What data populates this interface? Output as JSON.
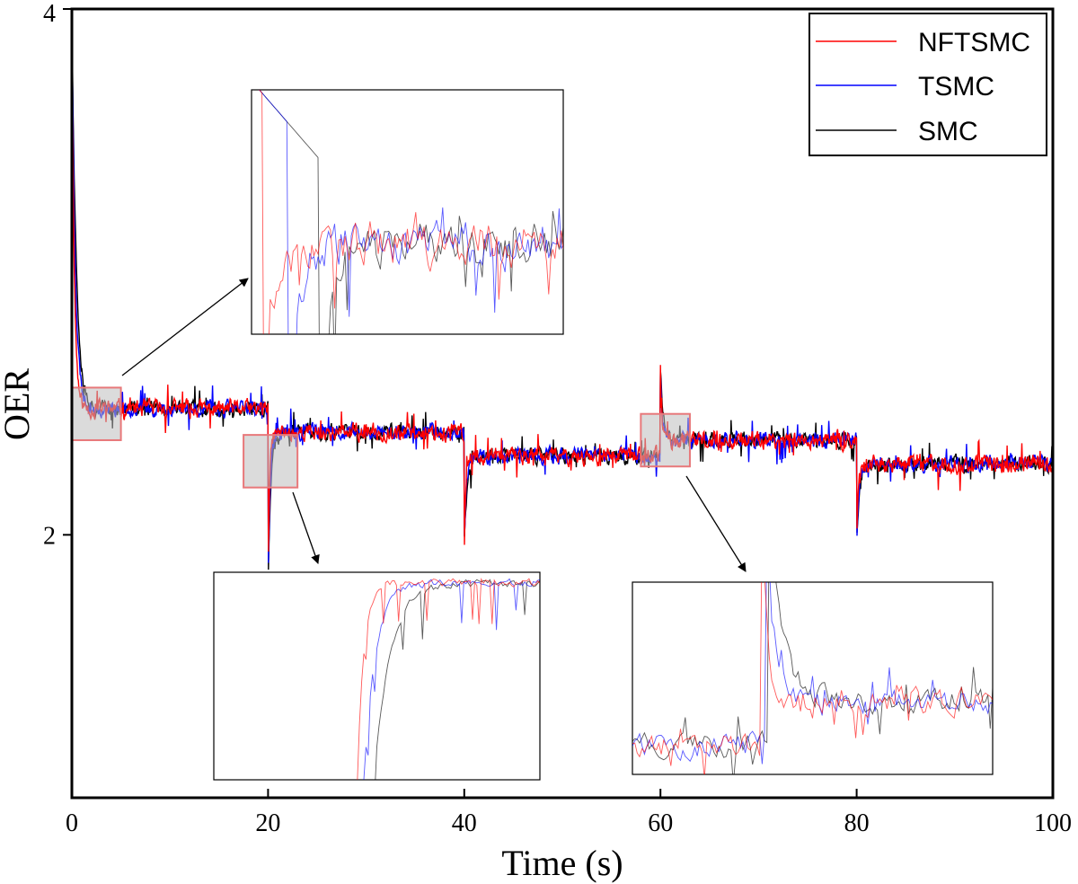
{
  "chart_data": {
    "type": "line",
    "xlabel": "Time (s)",
    "ylabel": "OER",
    "xlim": [
      0,
      100
    ],
    "ylim": [
      1.0,
      4.0
    ],
    "xticks": [
      "0",
      "20",
      "40",
      "60",
      "80",
      "100"
    ],
    "yticks": [
      "2",
      "4"
    ],
    "legend_position": "top-right",
    "grid": false,
    "series": [
      {
        "name": "NFTSMC",
        "color": "#ff0000"
      },
      {
        "name": "TSMC",
        "color": "#0000ff"
      },
      {
        "name": "SMC",
        "color": "#000000"
      }
    ],
    "setpoints": [
      {
        "t_start": 0,
        "t_end": 20,
        "value": 2.48
      },
      {
        "t_start": 20,
        "t_end": 40,
        "value": 2.39
      },
      {
        "t_start": 40,
        "t_end": 60,
        "value": 2.3
      },
      {
        "t_start": 60,
        "t_end": 80,
        "value": 2.36
      },
      {
        "t_start": 80,
        "t_end": 100,
        "value": 2.27
      }
    ],
    "initial_value": 4.0,
    "transient_extremes": [
      {
        "t": 20,
        "value": 1.78
      },
      {
        "t": 40,
        "value": 1.96
      },
      {
        "t": 60,
        "value": 2.63
      },
      {
        "t": 80,
        "value": 1.95
      }
    ],
    "zoom_regions": [
      {
        "x_range": [
          0,
          5
        ],
        "y_range": [
          2.36,
          2.56
        ]
      },
      {
        "x_range": [
          17.5,
          23
        ],
        "y_range": [
          2.18,
          2.38
        ]
      },
      {
        "x_range": [
          58,
          63
        ],
        "y_range": [
          2.26,
          2.46
        ]
      }
    ]
  }
}
